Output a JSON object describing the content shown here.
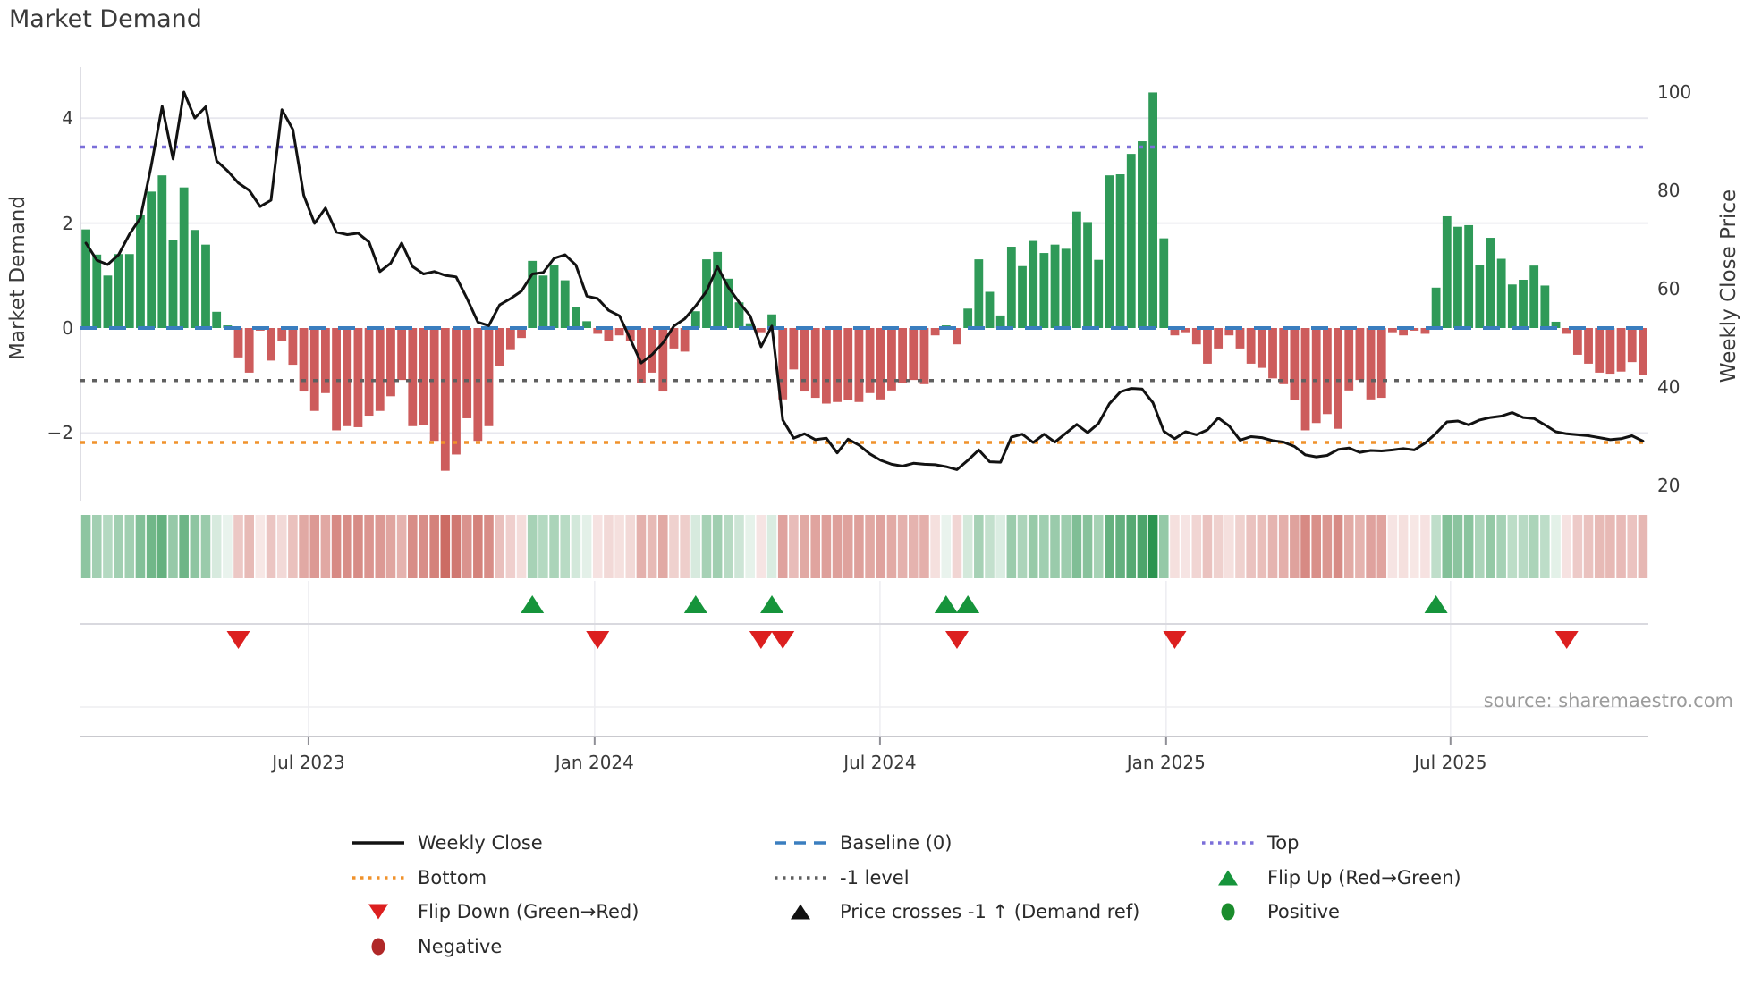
{
  "title": "Market Demand",
  "source": "source: sharemaestro.com",
  "axes": {
    "left_label": "Market Demand",
    "right_label": "Weekly Close Price",
    "left_ticks": [
      4,
      2,
      0,
      -2
    ],
    "right_ticks": [
      100,
      80,
      60,
      40,
      20
    ],
    "x_ticks": [
      {
        "label": "Jul 2023",
        "week": 20.94
      },
      {
        "label": "Jan 2024",
        "week": 47.22
      },
      {
        "label": "Jul 2024",
        "week": 73.43
      },
      {
        "label": "Jan 2025",
        "week": 99.71
      },
      {
        "label": "Jul 2025",
        "week": 125.83
      }
    ]
  },
  "ref_lines": [
    {
      "name": "top",
      "label": "Top",
      "value": 3.45,
      "color": "#7b6fd9",
      "style": "dotted"
    },
    {
      "name": "baseline",
      "label": "Baseline (0)",
      "value": 0,
      "color": "#3a7ebf",
      "style": "dashed"
    },
    {
      "name": "minus1",
      "label": "-1 level",
      "value": -1,
      "color": "#5f5f5f",
      "style": "dotted"
    },
    {
      "name": "bottom",
      "label": "Bottom",
      "value": -2.18,
      "color": "#f0922b",
      "style": "dotted"
    }
  ],
  "colors": {
    "bar_positive": "#2f9a58",
    "bar_negative": "#cd5c5c",
    "price_line": "#121212",
    "flip_up": "#16943b",
    "flip_down": "#dc1f1f",
    "positive_dot": "#1a8c2c",
    "negative_dot": "#b02828",
    "grid": "#e7e7ee",
    "spine": "#d4d4dc",
    "axis_line": "#c9c9ce",
    "heat_green_max": "#2c9450",
    "heat_red_max": "#cb6961"
  },
  "chart_data": {
    "type": "bar+line",
    "x_unit": "week",
    "n_weeks": 144,
    "left_ylim": [
      -3.3,
      4.97
    ],
    "right_ylim": [
      16.9,
      105.1
    ],
    "grid": "horizontal-light",
    "legend_position": "below",
    "series": [
      {
        "name": "Market Demand",
        "type": "bar",
        "axis": "left",
        "values": [
          1.88,
          1.4,
          1.0,
          1.41,
          1.41,
          2.16,
          2.6,
          2.91,
          1.68,
          2.68,
          1.87,
          1.59,
          0.31,
          0.05,
          -0.56,
          -0.85,
          -0.05,
          -0.62,
          -0.25,
          -0.7,
          -1.21,
          -1.58,
          -1.24,
          -1.95,
          -1.87,
          -1.89,
          -1.67,
          -1.58,
          -1.3,
          -0.99,
          -1.87,
          -1.84,
          -2.15,
          -2.72,
          -2.41,
          -1.72,
          -2.15,
          -1.87,
          -0.73,
          -0.42,
          -0.19,
          1.28,
          1.0,
          1.2,
          0.91,
          0.4,
          0.13,
          -0.11,
          -0.25,
          -0.14,
          -0.25,
          -1.04,
          -0.85,
          -1.21,
          -0.39,
          -0.45,
          0.32,
          1.31,
          1.45,
          0.94,
          0.49,
          0.09,
          -0.08,
          0.26,
          -1.36,
          -0.79,
          -1.21,
          -1.33,
          -1.44,
          -1.41,
          -1.38,
          -1.41,
          -1.24,
          -1.36,
          -1.19,
          -1.04,
          -0.99,
          -1.07,
          -0.14,
          0.05,
          -0.31,
          0.37,
          1.31,
          0.69,
          0.24,
          1.55,
          1.18,
          1.66,
          1.43,
          1.59,
          1.51,
          2.22,
          2.02,
          1.3,
          2.91,
          2.93,
          3.32,
          3.56,
          4.49,
          1.71,
          -0.14,
          -0.08,
          -0.31,
          -0.68,
          -0.39,
          -0.14,
          -0.39,
          -0.68,
          -0.76,
          -0.96,
          -1.07,
          -1.38,
          -1.95,
          -1.81,
          -1.64,
          -1.92,
          -1.19,
          -0.99,
          -1.36,
          -1.33,
          -0.08,
          -0.14,
          -0.05,
          -0.11,
          0.77,
          2.13,
          1.93,
          1.96,
          1.2,
          1.72,
          1.32,
          0.83,
          0.92,
          1.19,
          0.81,
          0.12,
          -0.11,
          -0.51,
          -0.68,
          -0.85,
          -0.87,
          -0.83,
          -0.65,
          -0.9
        ]
      },
      {
        "name": "Weekly Close",
        "type": "line",
        "axis": "right",
        "values": [
          69.3,
          65.8,
          64.9,
          66.9,
          71.1,
          74.4,
          85.0,
          97.1,
          86.4,
          100.0,
          94.7,
          97.0,
          86.0,
          84.0,
          81.5,
          80.0,
          76.7,
          78.0,
          96.4,
          92.4,
          79.0,
          73.3,
          76.4,
          71.5,
          71.0,
          71.3,
          69.5,
          63.5,
          65.2,
          69.3,
          64.5,
          63.0,
          63.5,
          62.7,
          62.4,
          58.0,
          53.2,
          52.5,
          56.7,
          58.0,
          59.5,
          63.0,
          63.3,
          66.2,
          66.9,
          64.8,
          58.5,
          58.0,
          55.6,
          54.5,
          49.7,
          44.9,
          46.6,
          49.0,
          52.4,
          53.9,
          56.5,
          59.5,
          64.5,
          60.3,
          57.2,
          54.5,
          48.2,
          52.4,
          33.3,
          29.6,
          30.5,
          29.3,
          29.6,
          26.6,
          29.4,
          28.2,
          26.4,
          25.1,
          24.3,
          23.9,
          24.5,
          24.3,
          24.2,
          23.8,
          23.2,
          25.1,
          27.2,
          24.8,
          24.7,
          29.8,
          30.4,
          28.7,
          30.4,
          28.8,
          30.6,
          32.4,
          30.7,
          32.6,
          36.6,
          39.0,
          39.7,
          39.6,
          36.8,
          31.0,
          29.5,
          30.9,
          30.3,
          31.3,
          33.7,
          32.1,
          29.2,
          29.9,
          29.7,
          29.1,
          28.8,
          27.9,
          26.2,
          25.8,
          26.1,
          27.3,
          27.6,
          26.7,
          27.1,
          27.0,
          27.2,
          27.5,
          27.2,
          28.6,
          30.6,
          32.9,
          33.1,
          32.3,
          33.3,
          33.8,
          34.1,
          34.8,
          33.8,
          33.6,
          32.3,
          30.9,
          30.5,
          30.3,
          30.1,
          29.7,
          29.3,
          29.5,
          30.1,
          29.0
        ]
      }
    ],
    "flip_up_weeks": [
      41,
      56,
      63,
      79,
      81,
      124
    ],
    "flip_down_weeks": [
      14,
      47,
      62,
      64,
      80,
      100,
      136
    ],
    "price_cross_minus1_weeks": []
  },
  "legend": {
    "columns": [
      [
        {
          "symbol": "line-solid",
          "color": "#121212",
          "label": "Weekly Close"
        },
        {
          "symbol": "line-dotted",
          "color": "#f0922b",
          "label": "Bottom"
        },
        {
          "symbol": "triangle-down",
          "color": "#dc1f1f",
          "label": "Flip Down (Green→Red)"
        },
        {
          "symbol": "circle",
          "color": "#b02828",
          "label": "Negative"
        }
      ],
      [
        {
          "symbol": "line-dashed",
          "color": "#3a7ebf",
          "label": "Baseline (0)"
        },
        {
          "symbol": "line-dotted",
          "color": "#5f5f5f",
          "label": "-1 level"
        },
        {
          "symbol": "triangle-up",
          "color": "#121212",
          "label": "Price crosses -1 ↑ (Demand ref)"
        }
      ],
      [
        {
          "symbol": "line-dotted",
          "color": "#7b6fd9",
          "label": "Top"
        },
        {
          "symbol": "triangle-up",
          "color": "#16943b",
          "label": "Flip Up (Red→Green)"
        },
        {
          "symbol": "circle",
          "color": "#1a8c2c",
          "label": "Positive"
        }
      ]
    ]
  }
}
